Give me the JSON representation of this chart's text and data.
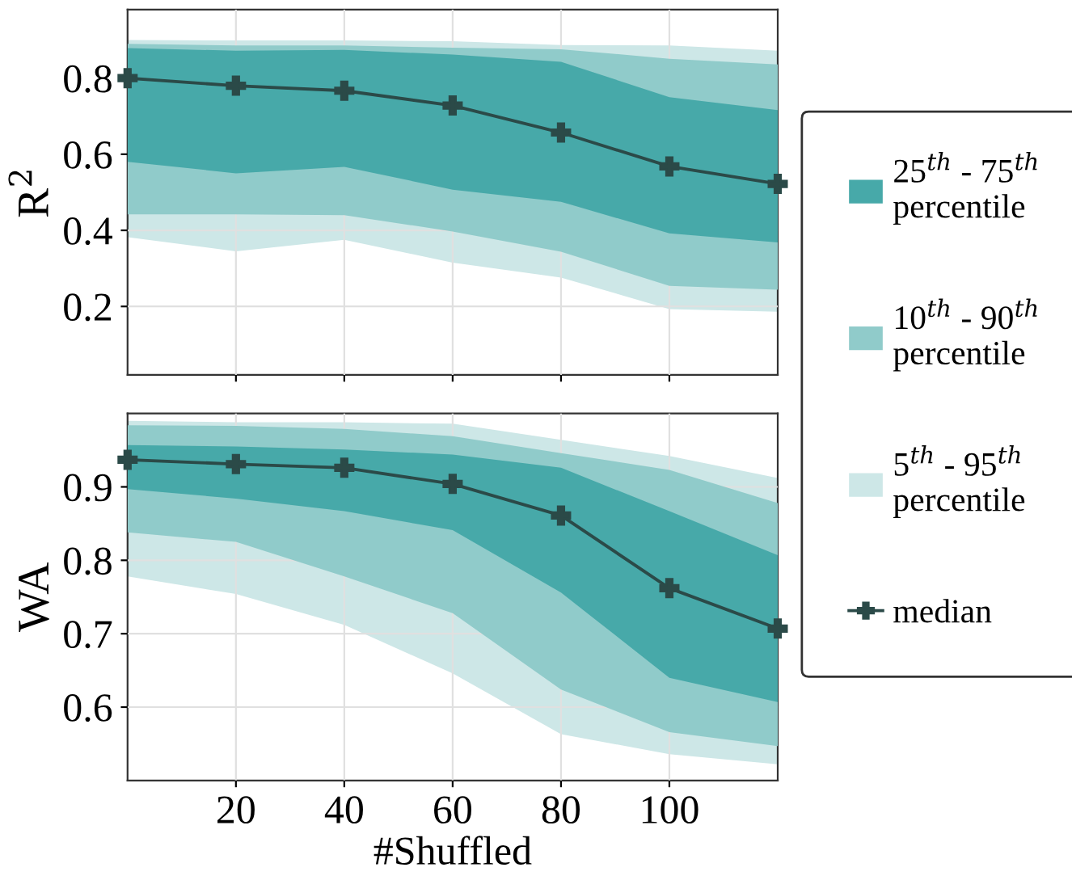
{
  "chart_data": [
    {
      "type": "area",
      "ylabel": "R$^{2}$",
      "x": [
        0,
        20,
        40,
        60,
        80,
        100,
        120
      ],
      "xlim": [
        0,
        120
      ],
      "xticks": [
        20,
        40,
        60,
        80,
        100
      ],
      "ylim": [
        0.02,
        0.98
      ],
      "yticks": [
        0.2,
        0.4,
        0.6,
        0.8
      ],
      "tick_labels": "y",
      "grid": true,
      "legend": "right",
      "series": [
        {
          "name": "25$^{th}$ - 75$^{th}$\npercentile",
          "color": "#47a9a9",
          "values": [
            null,
            null,
            null,
            null,
            null,
            null,
            null
          ],
          "lower": [
            0.58,
            0.55,
            0.567,
            0.507,
            0.475,
            0.392,
            0.368
          ],
          "upper": [
            0.879,
            0.872,
            0.874,
            0.862,
            0.843,
            0.75,
            0.716
          ]
        },
        {
          "name": "10$^{th}$ - 90$^{th}$\npercentile",
          "color": "#90cbca",
          "values": [
            null,
            null,
            null,
            null,
            null,
            null,
            null
          ],
          "lower": [
            0.442,
            0.442,
            0.44,
            0.397,
            0.344,
            0.254,
            0.244
          ],
          "upper": [
            0.89,
            0.886,
            0.886,
            0.88,
            0.876,
            0.851,
            0.836
          ]
        },
        {
          "name": "5$^{th}$ - 95$^{th}$\npercentile",
          "color": "#cde7e7",
          "values": [
            null,
            null,
            null,
            null,
            null,
            null,
            null
          ],
          "lower": [
            0.382,
            0.345,
            0.375,
            0.315,
            0.276,
            0.193,
            0.186
          ],
          "upper": [
            0.9,
            0.899,
            0.899,
            0.897,
            0.887,
            0.886,
            0.872
          ]
        },
        {
          "type": "line",
          "name": "median",
          "color": "#2b4a48",
          "marker": "cross",
          "values": [
            0.8,
            0.78,
            0.767,
            0.728,
            0.657,
            0.568,
            0.522
          ]
        }
      ]
    },
    {
      "type": "area",
      "ylabel": "WA",
      "xlabel": "#Shuffled",
      "x": [
        0,
        20,
        40,
        60,
        80,
        100,
        120
      ],
      "xlim": [
        0,
        120
      ],
      "xticks": [
        20,
        40,
        60,
        80,
        100
      ],
      "ylim": [
        0.5,
        1.0
      ],
      "yticks": [
        0.6,
        0.7,
        0.8,
        0.9
      ],
      "grid": true,
      "series": [
        {
          "color": "#47a9a9",
          "values": [
            null,
            null,
            null,
            null,
            null,
            null,
            null
          ],
          "lower": [
            0.897,
            0.884,
            0.867,
            0.841,
            0.756,
            0.64,
            0.607
          ],
          "upper": [
            0.957,
            0.955,
            0.951,
            0.944,
            0.926,
            0.867,
            0.807
          ]
        },
        {
          "color": "#90cbca",
          "values": [
            null,
            null,
            null,
            null,
            null,
            null,
            null
          ],
          "lower": [
            0.838,
            0.825,
            0.778,
            0.728,
            0.624,
            0.566,
            0.547
          ],
          "upper": [
            0.984,
            0.983,
            0.979,
            0.969,
            0.946,
            0.923,
            0.878
          ]
        },
        {
          "color": "#cde7e7",
          "values": [
            null,
            null,
            null,
            null,
            null,
            null,
            null
          ],
          "lower": [
            0.778,
            0.754,
            0.712,
            0.646,
            0.563,
            0.536,
            0.522
          ],
          "upper": [
            0.99,
            0.988,
            0.988,
            0.986,
            0.964,
            0.942,
            0.912
          ]
        },
        {
          "type": "line",
          "color": "#2b4a48",
          "marker": "cross",
          "values": [
            0.937,
            0.931,
            0.926,
            0.904,
            0.861,
            0.762,
            0.707
          ]
        }
      ]
    }
  ]
}
